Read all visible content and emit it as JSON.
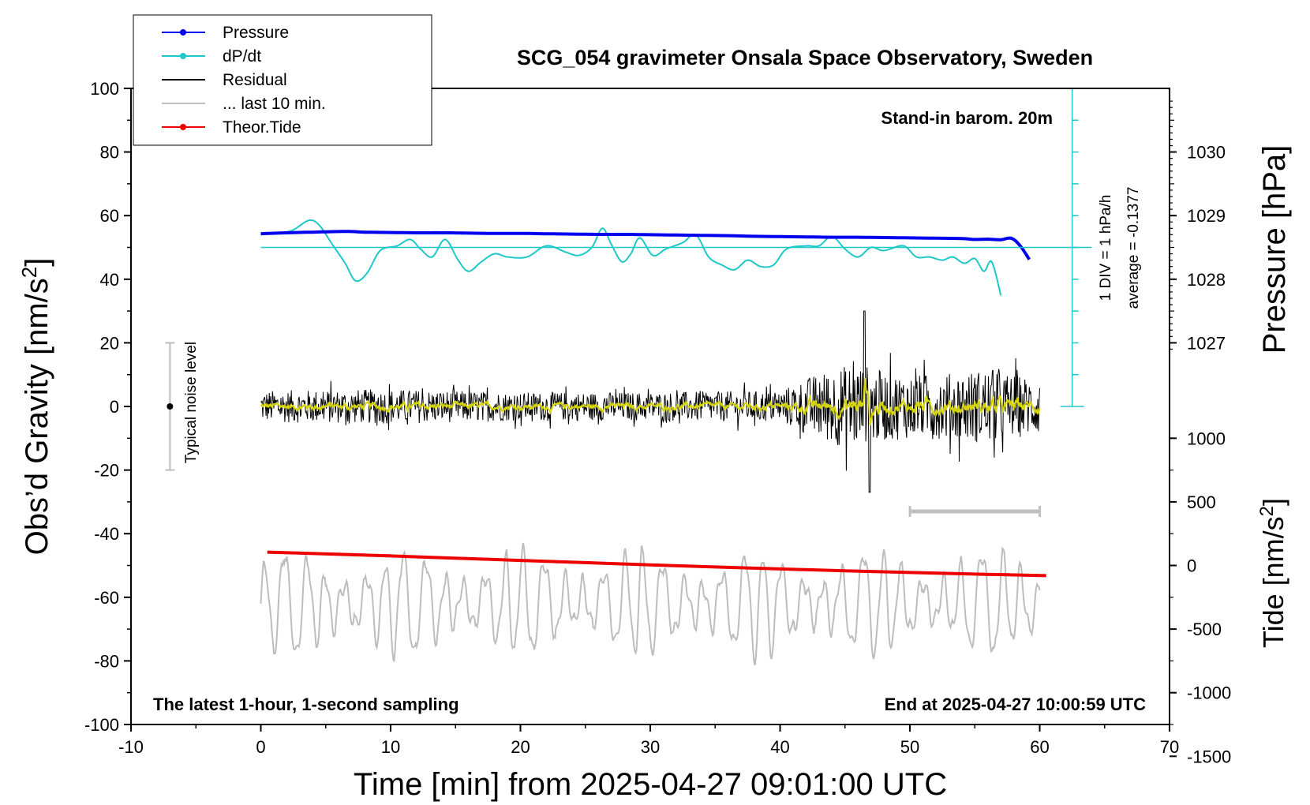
{
  "chart_data": {
    "type": "line",
    "title": "SCG_054 gravimeter Onsala Space Observatory, Sweden",
    "xlabel": "Time [min] from 2025-04-27 09:01:00 UTC",
    "ylabel_main": "Obs’d Gravity [nm/s",
    "ylabel_main_sup": "2",
    "ylabel_main_close": "]",
    "ylabel_pressure": "Pressure [hPa]",
    "ylabel_tide": "Tide [nm/s",
    "ylabel_tide_sup": "2",
    "ylabel_tide_close": "]",
    "xlim": [
      -10,
      70
    ],
    "ylim": [
      -100,
      100
    ],
    "x_ticks": [
      "-10",
      "0",
      "10",
      "20",
      "30",
      "40",
      "50",
      "60",
      "70"
    ],
    "y_ticks": [
      "100",
      "80",
      "60",
      "40",
      "20",
      "0",
      "-20",
      "-40",
      "-60",
      "-80",
      "-100"
    ],
    "pressure_axis": {
      "ticks": [
        "1030",
        "1029",
        "1028",
        "1027"
      ],
      "tick_values": [
        1030,
        1029,
        1028,
        1027
      ],
      "ref_value": 1028.5,
      "ref_gravity": 50,
      "gravity_per_hpa": 20
    },
    "tide_axis": {
      "ticks": [
        "1000",
        "500",
        "0",
        "-500",
        "-1000",
        "-1500"
      ],
      "tick_values": [
        1000,
        500,
        0,
        -500,
        -1000,
        -1500
      ],
      "ref_value": 0,
      "ref_gravity": -50,
      "gravity_per_unit": 0.04
    },
    "annotations": {
      "barometer_note": "Stand-in barom. 20m",
      "sampling_note": "The latest 1-hour, 1-second sampling",
      "end_note": "End at 2025-04-27 10:00:59 UTC",
      "noise_label": "Typical noise level",
      "dpdt_scale": "1 DIV = 1 hPa/h",
      "dpdt_average": "average = -0.1377"
    },
    "legend": [
      {
        "name": "Pressure",
        "color": "#0000ee",
        "marker": true
      },
      {
        "name": "dP/dt",
        "color": "#1ec8c8",
        "marker": true
      },
      {
        "name": "Residual",
        "color": "#000000",
        "marker": false
      },
      {
        "name": "... last 10 min.",
        "color": "#c0c0c0",
        "marker": false
      },
      {
        "name": "Theor.Tide",
        "color": "#ee0000",
        "marker": true
      }
    ],
    "noise_bar": {
      "x": -7,
      "y_low": -20,
      "y_high": 20,
      "center": 0
    },
    "last10_bar": {
      "x_start": 50,
      "x_end": 60,
      "y": -33
    },
    "series": [
      {
        "name": "Pressure",
        "color": "#0000ee",
        "x": [
          0,
          2,
          4,
          6,
          7,
          8,
          10,
          12,
          14,
          16,
          18,
          20,
          22,
          24,
          26,
          28,
          30,
          32,
          34,
          36,
          38,
          40,
          42,
          44,
          46,
          48,
          50,
          52,
          54,
          55,
          56,
          57,
          57.8,
          58.5,
          59.2
        ],
        "y": [
          54.3,
          54.6,
          54.8,
          55.0,
          55.0,
          54.8,
          54.7,
          54.6,
          54.6,
          54.5,
          54.4,
          54.4,
          54.3,
          54.2,
          54.1,
          54.1,
          54.0,
          53.9,
          53.8,
          53.7,
          53.5,
          53.4,
          53.3,
          53.2,
          53.2,
          53.1,
          53.0,
          52.9,
          52.8,
          52.5,
          52.6,
          52.4,
          52.9,
          50.5,
          46.2
        ]
      },
      {
        "name": "dP/dt",
        "color": "#1ec8c8",
        "x": [
          1.5,
          2.5,
          3.7,
          4.5,
          5.5,
          6.5,
          7.3,
          8.2,
          9.2,
          10.5,
          11.5,
          12.3,
          13.2,
          14.2,
          15.2,
          16.0,
          17.0,
          18.0,
          19.0,
          20.5,
          22.0,
          23.5,
          24.5,
          25.5,
          26.3,
          27.0,
          27.8,
          28.5,
          29.2,
          30.2,
          31.2,
          32.5,
          33.5,
          34.5,
          35.5,
          36.5,
          37.5,
          38.5,
          39.5,
          40.5,
          42.0,
          43.0,
          44.0,
          45.0,
          46.0,
          47.0,
          48.0,
          49.5,
          50.5,
          51.5,
          52.5,
          53.3,
          54.2,
          55.0,
          55.7,
          56.3,
          57.0
        ],
        "y": [
          54.5,
          55.5,
          58.5,
          57.0,
          51.0,
          45.0,
          39.5,
          42.0,
          49.0,
          50.5,
          52.5,
          49.5,
          47.0,
          52.5,
          46.0,
          42.5,
          45.5,
          48.0,
          47.0,
          47.0,
          50.5,
          48.5,
          47.5,
          50.0,
          56.0,
          51.0,
          45.5,
          48.0,
          53.0,
          47.5,
          49.5,
          51.5,
          54.0,
          47.0,
          44.5,
          43.0,
          46.0,
          44.0,
          44.5,
          49.5,
          50.5,
          50.5,
          53.5,
          49.5,
          47.0,
          50.0,
          49.0,
          50.5,
          47.0,
          47.0,
          46.0,
          47.0,
          45.0,
          46.5,
          42.5,
          45.5,
          35.0
        ]
      },
      {
        "name": "Theor.Tide",
        "color": "#ee0000",
        "x": [
          0.5,
          10,
          20,
          30,
          40,
          50,
          60.5
        ],
        "y": [
          -45.8,
          -47.0,
          -48.4,
          -49.8,
          -51.1,
          -52.2,
          -53.2
        ]
      }
    ],
    "residual_envelope": {
      "x": [
        0,
        10,
        20,
        30,
        40,
        42,
        44,
        46,
        48,
        50,
        52,
        54,
        56,
        58,
        60
      ],
      "amplitude": [
        5,
        5.5,
        4.5,
        4.5,
        5,
        9,
        12,
        14,
        11,
        10,
        10,
        11,
        12,
        10,
        9
      ],
      "peak_max": 30,
      "peak_min": -27
    }
  }
}
